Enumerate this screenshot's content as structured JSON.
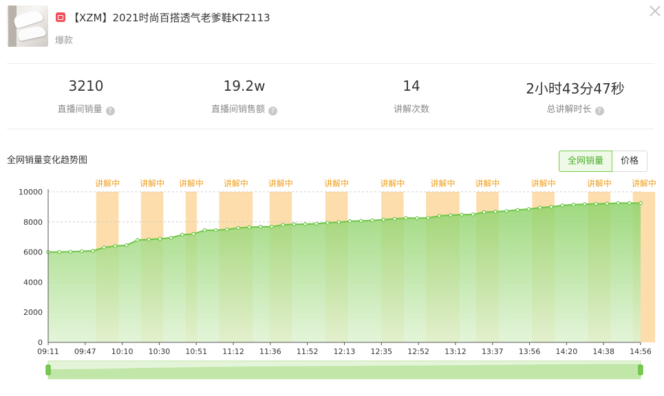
{
  "product": {
    "title": "【XZM】2021时尚百搭透气老爹鞋KT2113",
    "tag": "爆款"
  },
  "stats": [
    {
      "value": "3210",
      "label": "直播间销量",
      "help": true
    },
    {
      "value": "19.2w",
      "label": "直播间销售额",
      "help": true
    },
    {
      "value": "14",
      "label": "讲解次数",
      "help": false
    },
    {
      "value": "2小时43分47秒",
      "label": "总讲解时长",
      "help": true
    }
  ],
  "chart_section": {
    "title": "全网销量变化趋势图",
    "toggle": {
      "active": "全网销量",
      "other": "价格"
    },
    "help_glyph": "?"
  },
  "chart_data": {
    "type": "area",
    "ylim": [
      0,
      10000
    ],
    "yticks": [
      0,
      2000,
      4000,
      6000,
      8000,
      10000
    ],
    "x_tick_labels": [
      "09:11",
      "09:47",
      "10:10",
      "10:30",
      "10:51",
      "11:12",
      "11:36",
      "11:52",
      "12:13",
      "12:35",
      "12:52",
      "13:12",
      "13:37",
      "13:56",
      "14:20",
      "14:38",
      "14:56"
    ],
    "values": [
      6000,
      6000,
      6020,
      6050,
      6080,
      6300,
      6400,
      6450,
      6800,
      6830,
      6880,
      6950,
      7150,
      7200,
      7450,
      7450,
      7500,
      7600,
      7650,
      7680,
      7680,
      7800,
      7850,
      7850,
      7880,
      7950,
      7980,
      8050,
      8070,
      8100,
      8150,
      8200,
      8260,
      8250,
      8270,
      8400,
      8450,
      8480,
      8500,
      8650,
      8680,
      8720,
      8800,
      8850,
      8950,
      9000,
      9100,
      9150,
      9180,
      9200,
      9220,
      9250,
      9250,
      9250
    ],
    "explain_label": "讲解中",
    "explain_segments": [
      [
        4.3,
        6.3
      ],
      [
        8.3,
        10.3
      ],
      [
        12.3,
        13.3
      ],
      [
        15.3,
        18.3
      ],
      [
        19.8,
        21.8
      ],
      [
        24.8,
        26.8
      ],
      [
        29.8,
        31.8
      ],
      [
        33.8,
        36.8
      ],
      [
        38.3,
        40.3
      ],
      [
        43.3,
        45.3
      ],
      [
        48.3,
        50.3
      ],
      [
        52.3,
        54.3
      ],
      [
        56.3,
        58.3
      ],
      [
        60.3,
        62.3
      ]
    ],
    "colors": {
      "line": "#6cc644",
      "area_top": "#8fd36a",
      "area_bottom": "#dff3d3",
      "explain": "#fcd9a2",
      "explain_text": "#f0a020",
      "grid": "#cccccc",
      "axis": "#555555"
    }
  }
}
